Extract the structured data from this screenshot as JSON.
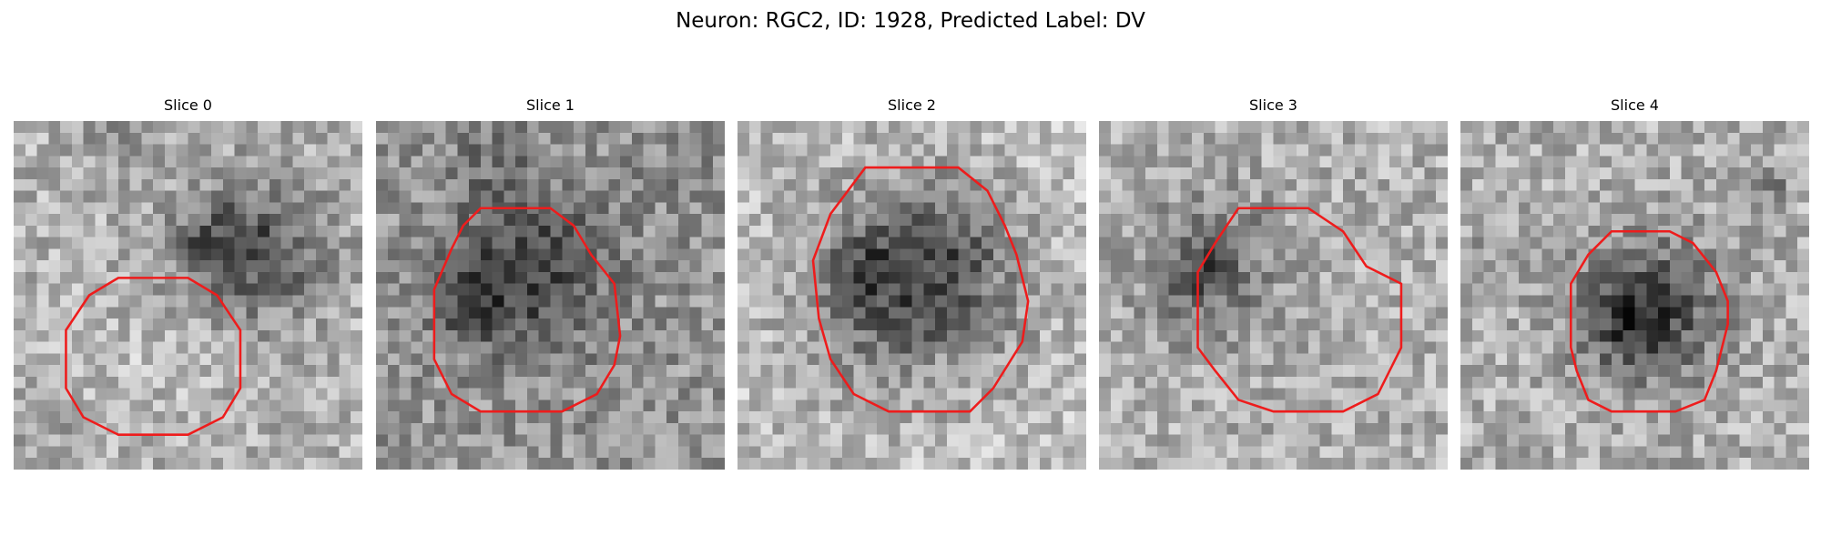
{
  "figure": {
    "title": "Neuron: RGC2, ID: 1928, Predicted Label: DV"
  },
  "colors": {
    "background": "#ffffff",
    "contour": "#ee1c1c",
    "colormap": "grayscale"
  },
  "slices": [
    {
      "label": "Slice 0"
    },
    {
      "label": "Slice 1"
    },
    {
      "label": "Slice 2"
    },
    {
      "label": "Slice 3"
    },
    {
      "label": "Slice 4"
    }
  ]
}
